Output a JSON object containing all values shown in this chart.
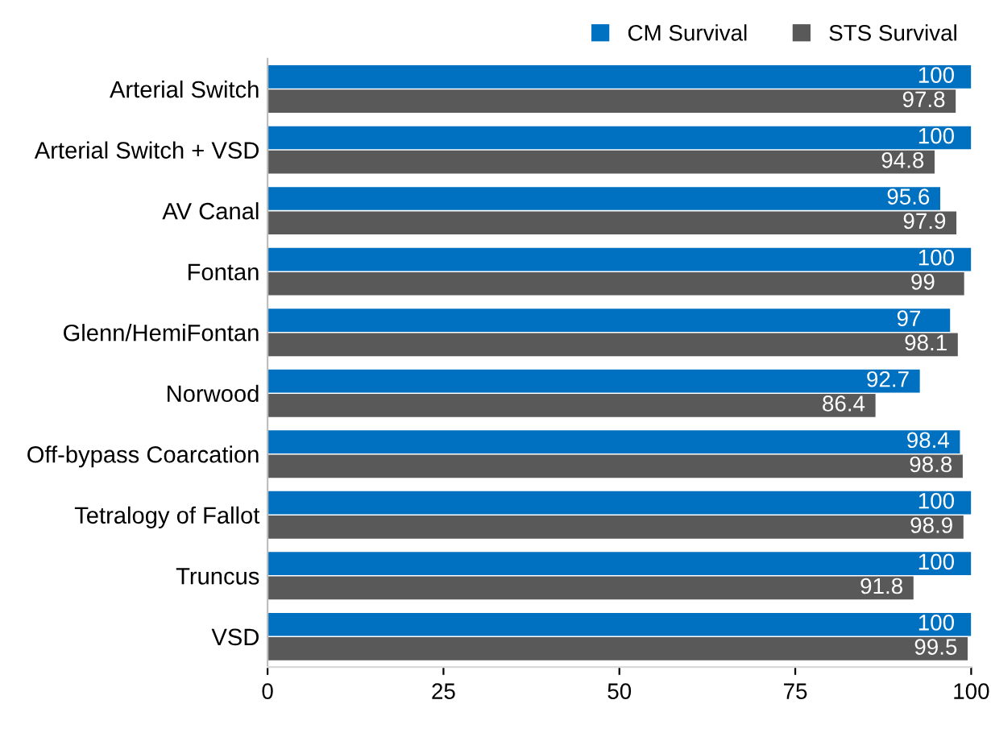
{
  "chart_data": {
    "type": "bar",
    "orientation": "horizontal",
    "categories": [
      "Arterial Switch",
      "Arterial Switch + VSD",
      "AV Canal",
      "Fontan",
      "Glenn/HemiFontan",
      "Norwood",
      "Off-bypass Coarcation",
      "Tetralogy of Fallot",
      "Truncus",
      "VSD"
    ],
    "series": [
      {
        "name": "CM Survival",
        "color": "#0070c0",
        "values": [
          100,
          100,
          95.6,
          100,
          97,
          92.7,
          98.4,
          100,
          100,
          100
        ]
      },
      {
        "name": "STS Survival",
        "color": "#595959",
        "values": [
          97.8,
          94.8,
          97.9,
          99,
          98.1,
          86.4,
          98.8,
          98.9,
          91.8,
          99.5
        ]
      }
    ],
    "xlim": [
      0,
      100
    ],
    "xticks": [
      0,
      25,
      50,
      75,
      100
    ],
    "grid": false,
    "legend": "top right",
    "data_labels": true
  }
}
